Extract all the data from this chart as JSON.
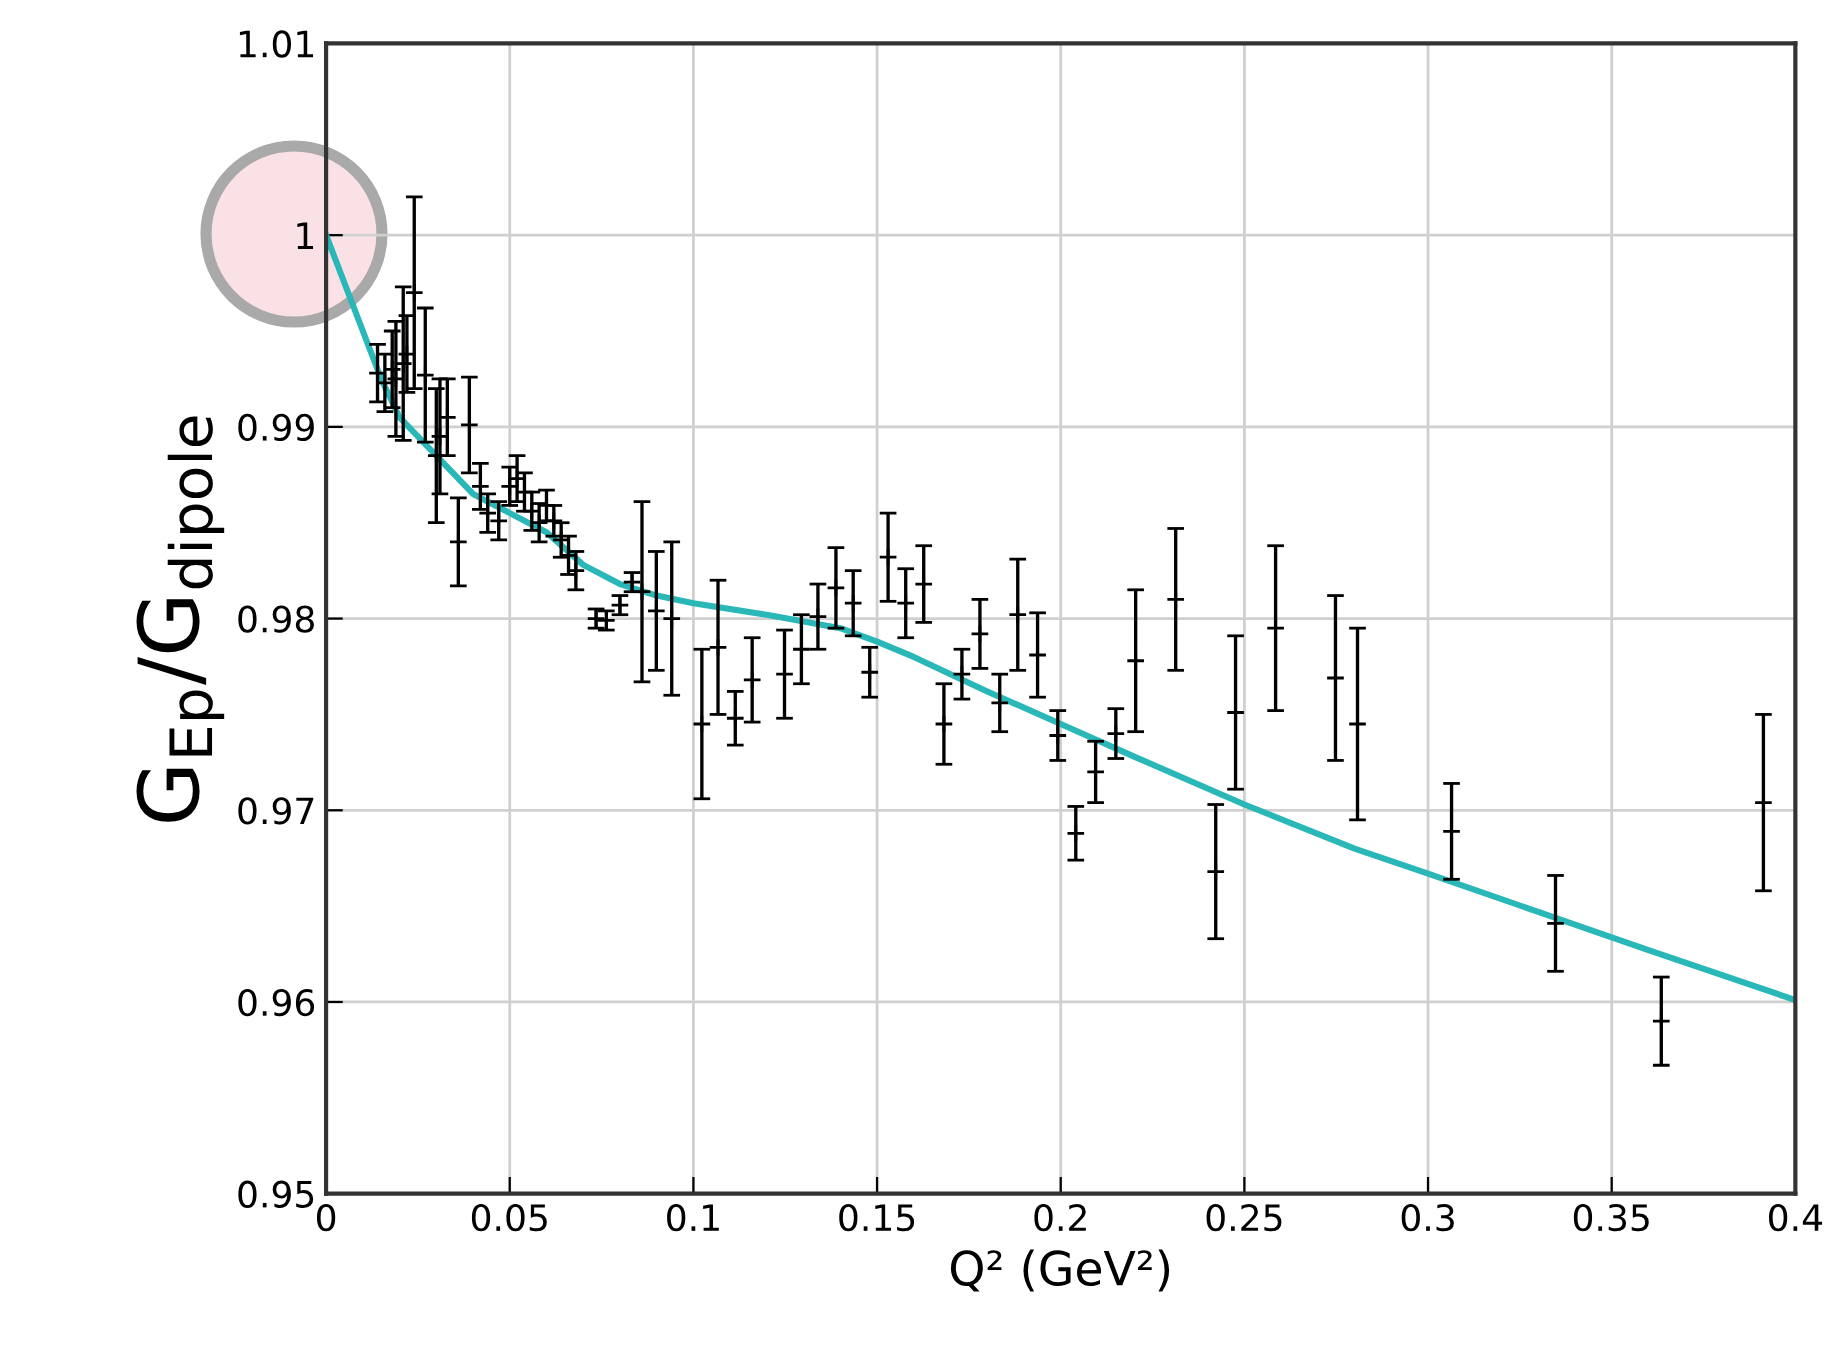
{
  "chart_data": {
    "type": "scatter",
    "xlabel": "Q² (GeV²)",
    "ylabel": "G$_{Ep}$/G$_{dipole}$",
    "xlim": [
      0,
      0.4
    ],
    "xticks": [
      0,
      0.05,
      0.1,
      0.15,
      0.2,
      0.25,
      0.3,
      0.35,
      0.4
    ],
    "ylim": [
      0.95,
      1.01
    ],
    "yticks": [
      0.95,
      0.96,
      0.97,
      0.98,
      0.99,
      1,
      1.01
    ],
    "grid": true,
    "legend": false,
    "series": [
      {
        "color": "#000000",
        "marker": "cross",
        "x": [
          0.014,
          0.016,
          0.018,
          0.019,
          0.021,
          0.022,
          0.024,
          0.027,
          0.03,
          0.031,
          0.033,
          0.036,
          0.039,
          0.042,
          0.044,
          0.047,
          0.05,
          0.052,
          0.054,
          0.056,
          0.058,
          0.06,
          0.062,
          0.064,
          0.066,
          0.068,
          0.0735,
          0.0763,
          0.08,
          0.0833,
          0.086,
          0.0899,
          0.0941,
          0.1023,
          0.1067,
          0.1114,
          0.116,
          0.1248,
          0.1294,
          0.1339,
          0.1388,
          0.1435,
          0.148,
          0.153,
          0.1578,
          0.1627,
          0.1682,
          0.1731,
          0.178,
          0.1834,
          0.1883,
          0.1937,
          0.1992,
          0.2041,
          0.2095,
          0.215,
          0.2204,
          0.2313,
          0.2422,
          0.2476,
          0.2585,
          0.2748,
          0.2808,
          0.3064,
          0.3347,
          0.3635,
          0.3913
        ],
        "values": [
          0.9928,
          0.9923,
          0.993,
          0.9925,
          0.9933,
          0.9938,
          0.997,
          0.9927,
          0.9885,
          0.9895,
          0.9905,
          0.984,
          0.9901,
          0.9869,
          0.9855,
          0.9851,
          0.9869,
          0.9873,
          0.9866,
          0.9856,
          0.985,
          0.9859,
          0.9851,
          0.9841,
          0.9833,
          0.9825,
          0.98,
          0.9799,
          0.9807,
          0.9819,
          0.9814,
          0.9804,
          0.98,
          0.9745,
          0.9785,
          0.9748,
          0.9768,
          0.9771,
          0.9784,
          0.9801,
          0.9816,
          0.9808,
          0.9772,
          0.9832,
          0.9808,
          0.9818,
          0.9745,
          0.9771,
          0.9792,
          0.9756,
          0.9802,
          0.9781,
          0.9739,
          0.9688,
          0.972,
          0.974,
          0.9778,
          0.981,
          0.9668,
          0.9751,
          0.9795,
          0.9769,
          0.9745,
          0.9689,
          0.9641,
          0.959,
          0.9704
        ],
        "errors": [
          0.0015,
          0.0015,
          0.002,
          0.003,
          0.004,
          0.002,
          0.005,
          0.0035,
          0.0035,
          0.003,
          0.002,
          0.0023,
          0.0025,
          0.0012,
          0.001,
          0.001,
          0.001,
          0.0012,
          0.001,
          0.001,
          0.001,
          0.0008,
          0.0008,
          0.0009,
          0.001,
          0.001,
          0.0005,
          0.0005,
          0.0005,
          0.0005,
          0.0047,
          0.0031,
          0.004,
          0.0039,
          0.0035,
          0.0014,
          0.0022,
          0.0023,
          0.0018,
          0.0017,
          0.0021,
          0.0017,
          0.0013,
          0.0023,
          0.0018,
          0.002,
          0.0021,
          0.0013,
          0.0018,
          0.0015,
          0.0029,
          0.0022,
          0.0013,
          0.0014,
          0.0016,
          0.0013,
          0.0037,
          0.0037,
          0.0035,
          0.004,
          0.0043,
          0.0043,
          0.005,
          0.0025,
          0.0025,
          0.0023,
          0.0046
        ]
      },
      {
        "type": "line",
        "color": "#2ab7b7",
        "marker": "none",
        "line_style": "solid",
        "x": [
          0,
          0.01,
          0.015,
          0.02,
          0.03,
          0.04,
          0.05,
          0.06,
          0.07,
          0.08,
          0.09,
          0.1,
          0.12,
          0.14,
          0.15,
          0.16,
          0.18,
          0.2,
          0.22,
          0.25,
          0.28,
          0.3,
          0.33,
          0.36,
          0.4
        ],
        "values": [
          1.0,
          0.995,
          0.9925,
          0.9905,
          0.9885,
          0.9865,
          0.9855,
          0.9845,
          0.9828,
          0.9818,
          0.9812,
          0.9808,
          0.9802,
          0.9795,
          0.9788,
          0.978,
          0.9762,
          0.9745,
          0.9728,
          0.9703,
          0.968,
          0.9667,
          0.9647,
          0.9627,
          0.9601
        ]
      }
    ]
  }
}
